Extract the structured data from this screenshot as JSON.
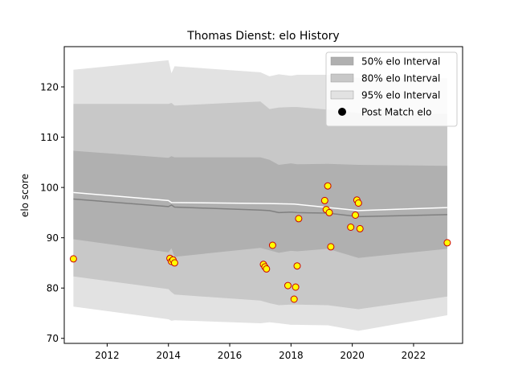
{
  "chart_data": {
    "type": "scatter",
    "title": "Thomas Dienst: elo History",
    "xlabel": "",
    "ylabel": "elo score",
    "xlim": [
      2010.6,
      2023.6
    ],
    "ylim": [
      69,
      128
    ],
    "xticks": [
      2012,
      2014,
      2016,
      2018,
      2020,
      2022
    ],
    "yticks": [
      70,
      80,
      90,
      100,
      110,
      120
    ],
    "grid": false,
    "legend_position": "top-right",
    "legend": [
      {
        "label": "50% elo Interval",
        "kind": "band",
        "color": "#b0b0b0"
      },
      {
        "label": "80% elo Interval",
        "kind": "band",
        "color": "#c8c8c8"
      },
      {
        "label": "95% elo Interval",
        "kind": "band",
        "color": "#e2e2e2"
      },
      {
        "label": "Post Match elo",
        "kind": "marker",
        "color": "#000000"
      }
    ],
    "colors": {
      "band50": "#b0b0b0",
      "band80": "#c8c8c8",
      "band95": "#e2e2e2",
      "mean_line": "#808080",
      "pre_match_line": "#ffffff",
      "marker_fill": "#ffff00",
      "marker_edge": "#cc0000"
    },
    "bands": {
      "x": [
        2010.9,
        2014.0,
        2014.1,
        2014.2,
        2017.0,
        2017.3,
        2017.6,
        2018.0,
        2018.2,
        2019.2,
        2020.2,
        2023.1
      ],
      "center": [
        97.7,
        96.2,
        96.5,
        96.1,
        95.5,
        95.4,
        95.0,
        95.1,
        95.0,
        94.9,
        94.2,
        94.6
      ],
      "p50_low": [
        89.7,
        87.1,
        87.9,
        86.2,
        88.0,
        87.5,
        87.0,
        87.4,
        87.3,
        87.8,
        86.0,
        87.8
      ],
      "p50_high": [
        107.3,
        105.9,
        106.2,
        106.0,
        106.0,
        105.5,
        104.5,
        104.8,
        104.6,
        104.7,
        104.5,
        104.3
      ],
      "p80_low": [
        82.3,
        79.8,
        79.2,
        78.7,
        77.5,
        77.0,
        76.6,
        76.7,
        76.7,
        76.6,
        75.8,
        78.3
      ],
      "p80_high": [
        116.6,
        116.6,
        116.8,
        116.3,
        117.1,
        115.6,
        115.9,
        116.0,
        116.0,
        115.5,
        114.8,
        114.6
      ],
      "p95_low": [
        76.3,
        73.8,
        73.5,
        73.6,
        73.0,
        73.2,
        73.0,
        72.7,
        72.7,
        72.6,
        71.5,
        74.6
      ],
      "p95_high": [
        123.4,
        125.3,
        122.7,
        124.1,
        122.9,
        122.1,
        122.5,
        122.2,
        122.4,
        122.4,
        121.8,
        121.7
      ]
    },
    "pre_match_line": {
      "x": [
        2010.9,
        2014.0,
        2014.1,
        2017.3,
        2018.1,
        2020.2,
        2023.1
      ],
      "y": [
        99.0,
        97.4,
        97.0,
        96.8,
        96.7,
        95.4,
        96.0
      ]
    },
    "series": [
      {
        "name": "Post Match elo",
        "x": [
          2010.9,
          2014.05,
          2014.1,
          2014.15,
          2014.2,
          2017.1,
          2017.15,
          2017.2,
          2017.4,
          2017.9,
          2018.1,
          2018.15,
          2018.2,
          2018.25,
          2019.1,
          2019.15,
          2019.2,
          2019.25,
          2019.3,
          2019.95,
          2020.1,
          2020.15,
          2020.2,
          2020.25,
          2023.1
        ],
        "y": [
          85.8,
          85.9,
          85.3,
          85.6,
          85.0,
          84.7,
          84.2,
          83.8,
          88.5,
          80.5,
          77.8,
          80.2,
          84.4,
          93.8,
          97.4,
          95.6,
          100.3,
          95.0,
          88.2,
          92.1,
          94.5,
          97.5,
          96.9,
          91.8,
          89.0
        ]
      }
    ]
  }
}
